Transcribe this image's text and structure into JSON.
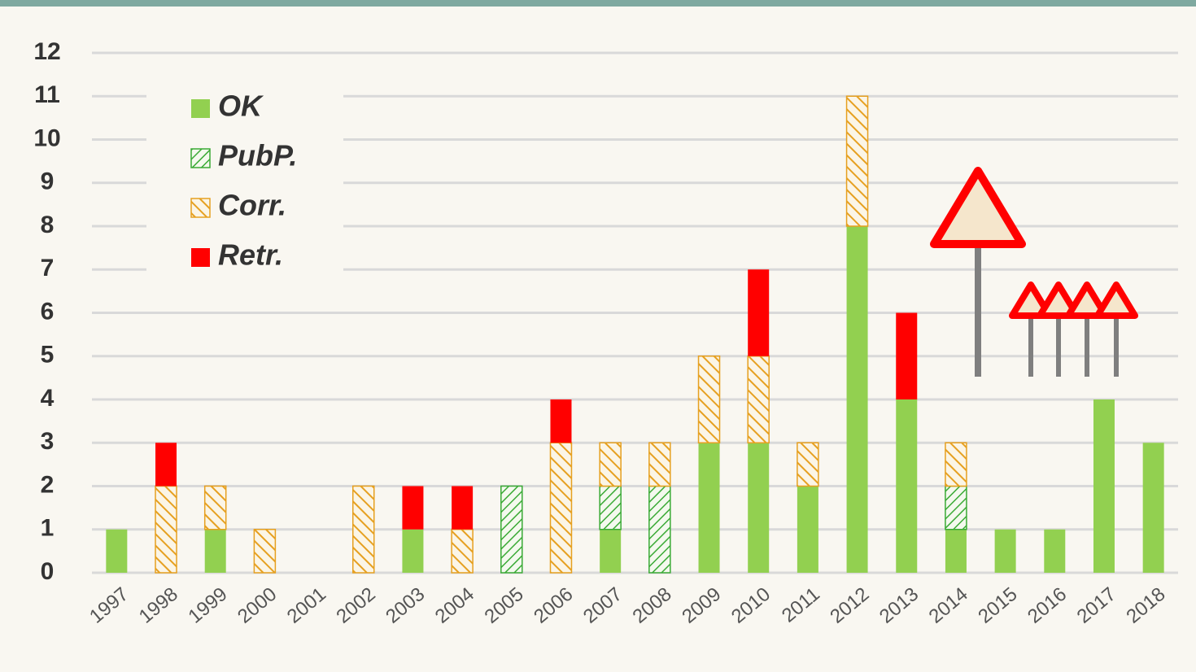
{
  "chart_data": {
    "type": "stacked_bar",
    "categories": [
      "1997",
      "1998",
      "1999",
      "2000",
      "2001",
      "2002",
      "2003",
      "2004",
      "2005",
      "2006",
      "2007",
      "2008",
      "2009",
      "2010",
      "2011",
      "2012",
      "2013",
      "2014",
      "2015",
      "2016",
      "2017",
      "2018"
    ],
    "series": [
      {
        "name": "OK",
        "color": "#92d050",
        "hatch": false,
        "values": [
          1,
          0,
          1,
          0,
          0,
          0,
          1,
          0,
          0,
          0,
          1,
          0,
          3,
          3,
          2,
          8,
          4,
          1,
          1,
          1,
          4,
          3
        ]
      },
      {
        "name": "PubP.",
        "color": "#3aaa35",
        "hatch": true,
        "values": [
          0,
          0,
          0,
          0,
          0,
          0,
          0,
          0,
          2,
          0,
          1,
          2,
          0,
          0,
          0,
          0,
          0,
          1,
          0,
          0,
          0,
          0
        ]
      },
      {
        "name": "Corr.",
        "color": "#e6a020",
        "hatch": true,
        "values": [
          0,
          2,
          1,
          1,
          0,
          2,
          0,
          1,
          0,
          3,
          1,
          1,
          2,
          2,
          1,
          3,
          0,
          1,
          0,
          0,
          0,
          0
        ]
      },
      {
        "name": "Retr.",
        "color": "#ff0000",
        "hatch": false,
        "values": [
          0,
          1,
          0,
          0,
          0,
          0,
          1,
          1,
          0,
          1,
          0,
          0,
          0,
          2,
          0,
          0,
          2,
          0,
          0,
          0,
          0,
          0
        ]
      }
    ],
    "ylim": [
      0,
      12
    ],
    "yticks": [
      0,
      1,
      2,
      3,
      4,
      5,
      6,
      7,
      8,
      9,
      10,
      11,
      12
    ],
    "grid": true,
    "legend": "upper-left"
  }
}
